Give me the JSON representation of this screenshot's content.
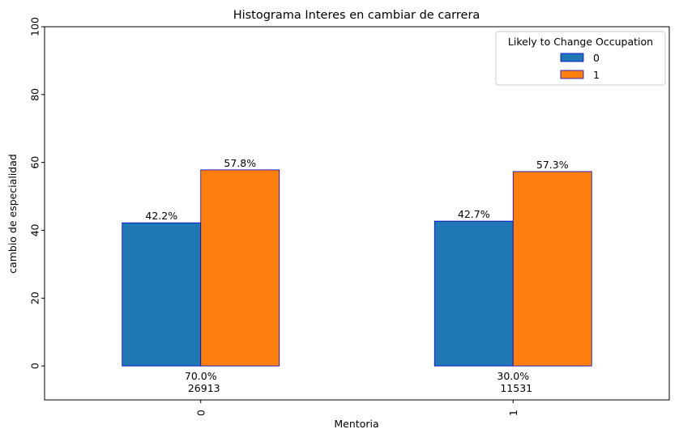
{
  "chart_data": {
    "type": "bar",
    "title": "Histograma Interes en cambiar de carrera",
    "xlabel": "Mentoria",
    "ylabel": "cambio de especialidad",
    "categories": [
      "0",
      "1"
    ],
    "ylim": [
      -10,
      100
    ],
    "yticks": [
      0,
      20,
      40,
      60,
      80,
      100
    ],
    "grid": false,
    "legend": {
      "title": "Likely to Change Occupation",
      "placement": "top-right"
    },
    "series": [
      {
        "name": "0",
        "color": "#1f77b4",
        "values": [
          42.2,
          42.7
        ],
        "labels": [
          "42.2%",
          "42.7%"
        ]
      },
      {
        "name": "1",
        "color": "#ff7f0e",
        "values": [
          57.8,
          57.3
        ],
        "labels": [
          "57.8%",
          "57.3%"
        ]
      }
    ],
    "bar_edge_color": "#0000cc",
    "group_annotations": [
      {
        "percent": "70.0%",
        "count": "26913"
      },
      {
        "percent": "30.0%",
        "count": "11531"
      }
    ]
  }
}
